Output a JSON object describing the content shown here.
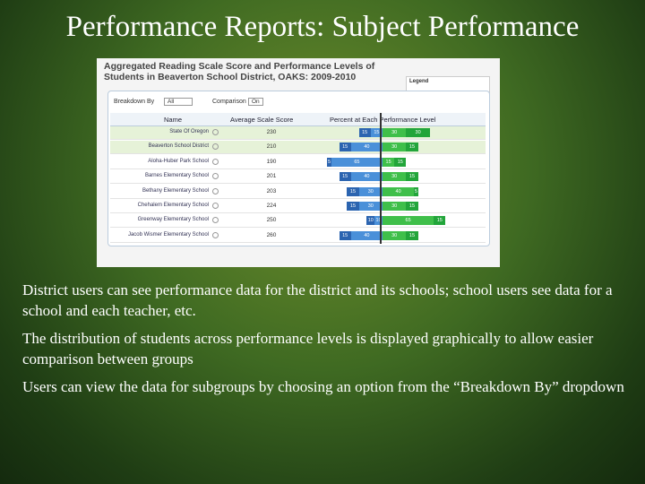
{
  "slide": {
    "title": "Performance Reports: Subject Performance"
  },
  "report": {
    "title": "Aggregated Reading Scale Score and Performance Levels of Students in Beaverton School District, OAKS: 2009-2010",
    "breakdown_label": "Breakdown By",
    "breakdown_value": "All",
    "comparison_label": "Comparison",
    "comparison_value": "On",
    "legend_title": "Legend",
    "columns": [
      "Name",
      "Average Scale Score",
      "Percent at Each Performance Level"
    ],
    "level_colors": [
      "#2b64b0",
      "#4a90d9",
      "#3fbf4a",
      "#22a53a"
    ],
    "rows": [
      {
        "name": "State Of Oregon",
        "score": 230,
        "below": [
          15,
          15
        ],
        "above": [
          30,
          30
        ]
      },
      {
        "name": "Beaverton School District",
        "score": 210,
        "below": [
          15,
          40
        ],
        "above": [
          30,
          15
        ]
      },
      {
        "name": "Aloha-Huber Park School",
        "score": 190,
        "below": [
          5,
          65
        ],
        "above": [
          15,
          15
        ]
      },
      {
        "name": "Barnes Elementary School",
        "score": 201,
        "below": [
          15,
          40
        ],
        "above": [
          30,
          15
        ]
      },
      {
        "name": "Bethany Elementary School",
        "score": 203,
        "below": [
          15,
          30
        ],
        "above": [
          40,
          5
        ]
      },
      {
        "name": "Chehalem Elementary School",
        "score": 224,
        "below": [
          15,
          30
        ],
        "above": [
          30,
          15
        ]
      },
      {
        "name": "Greenway Elementary School",
        "score": 250,
        "below": [
          10,
          10
        ],
        "above": [
          65,
          15
        ]
      },
      {
        "name": "Jacob Wismer Elementary School",
        "score": 260,
        "below": [
          15,
          40
        ],
        "above": [
          30,
          15
        ]
      }
    ]
  },
  "bullets": [
    "District users can see performance data for the district and its schools; school users see data for a school and each teacher, etc.",
    "The distribution of students across performance levels is displayed graphically to allow easier comparison between groups",
    "Users can view the data for subgroups by choosing an option from the “Breakdown By” dropdown"
  ]
}
